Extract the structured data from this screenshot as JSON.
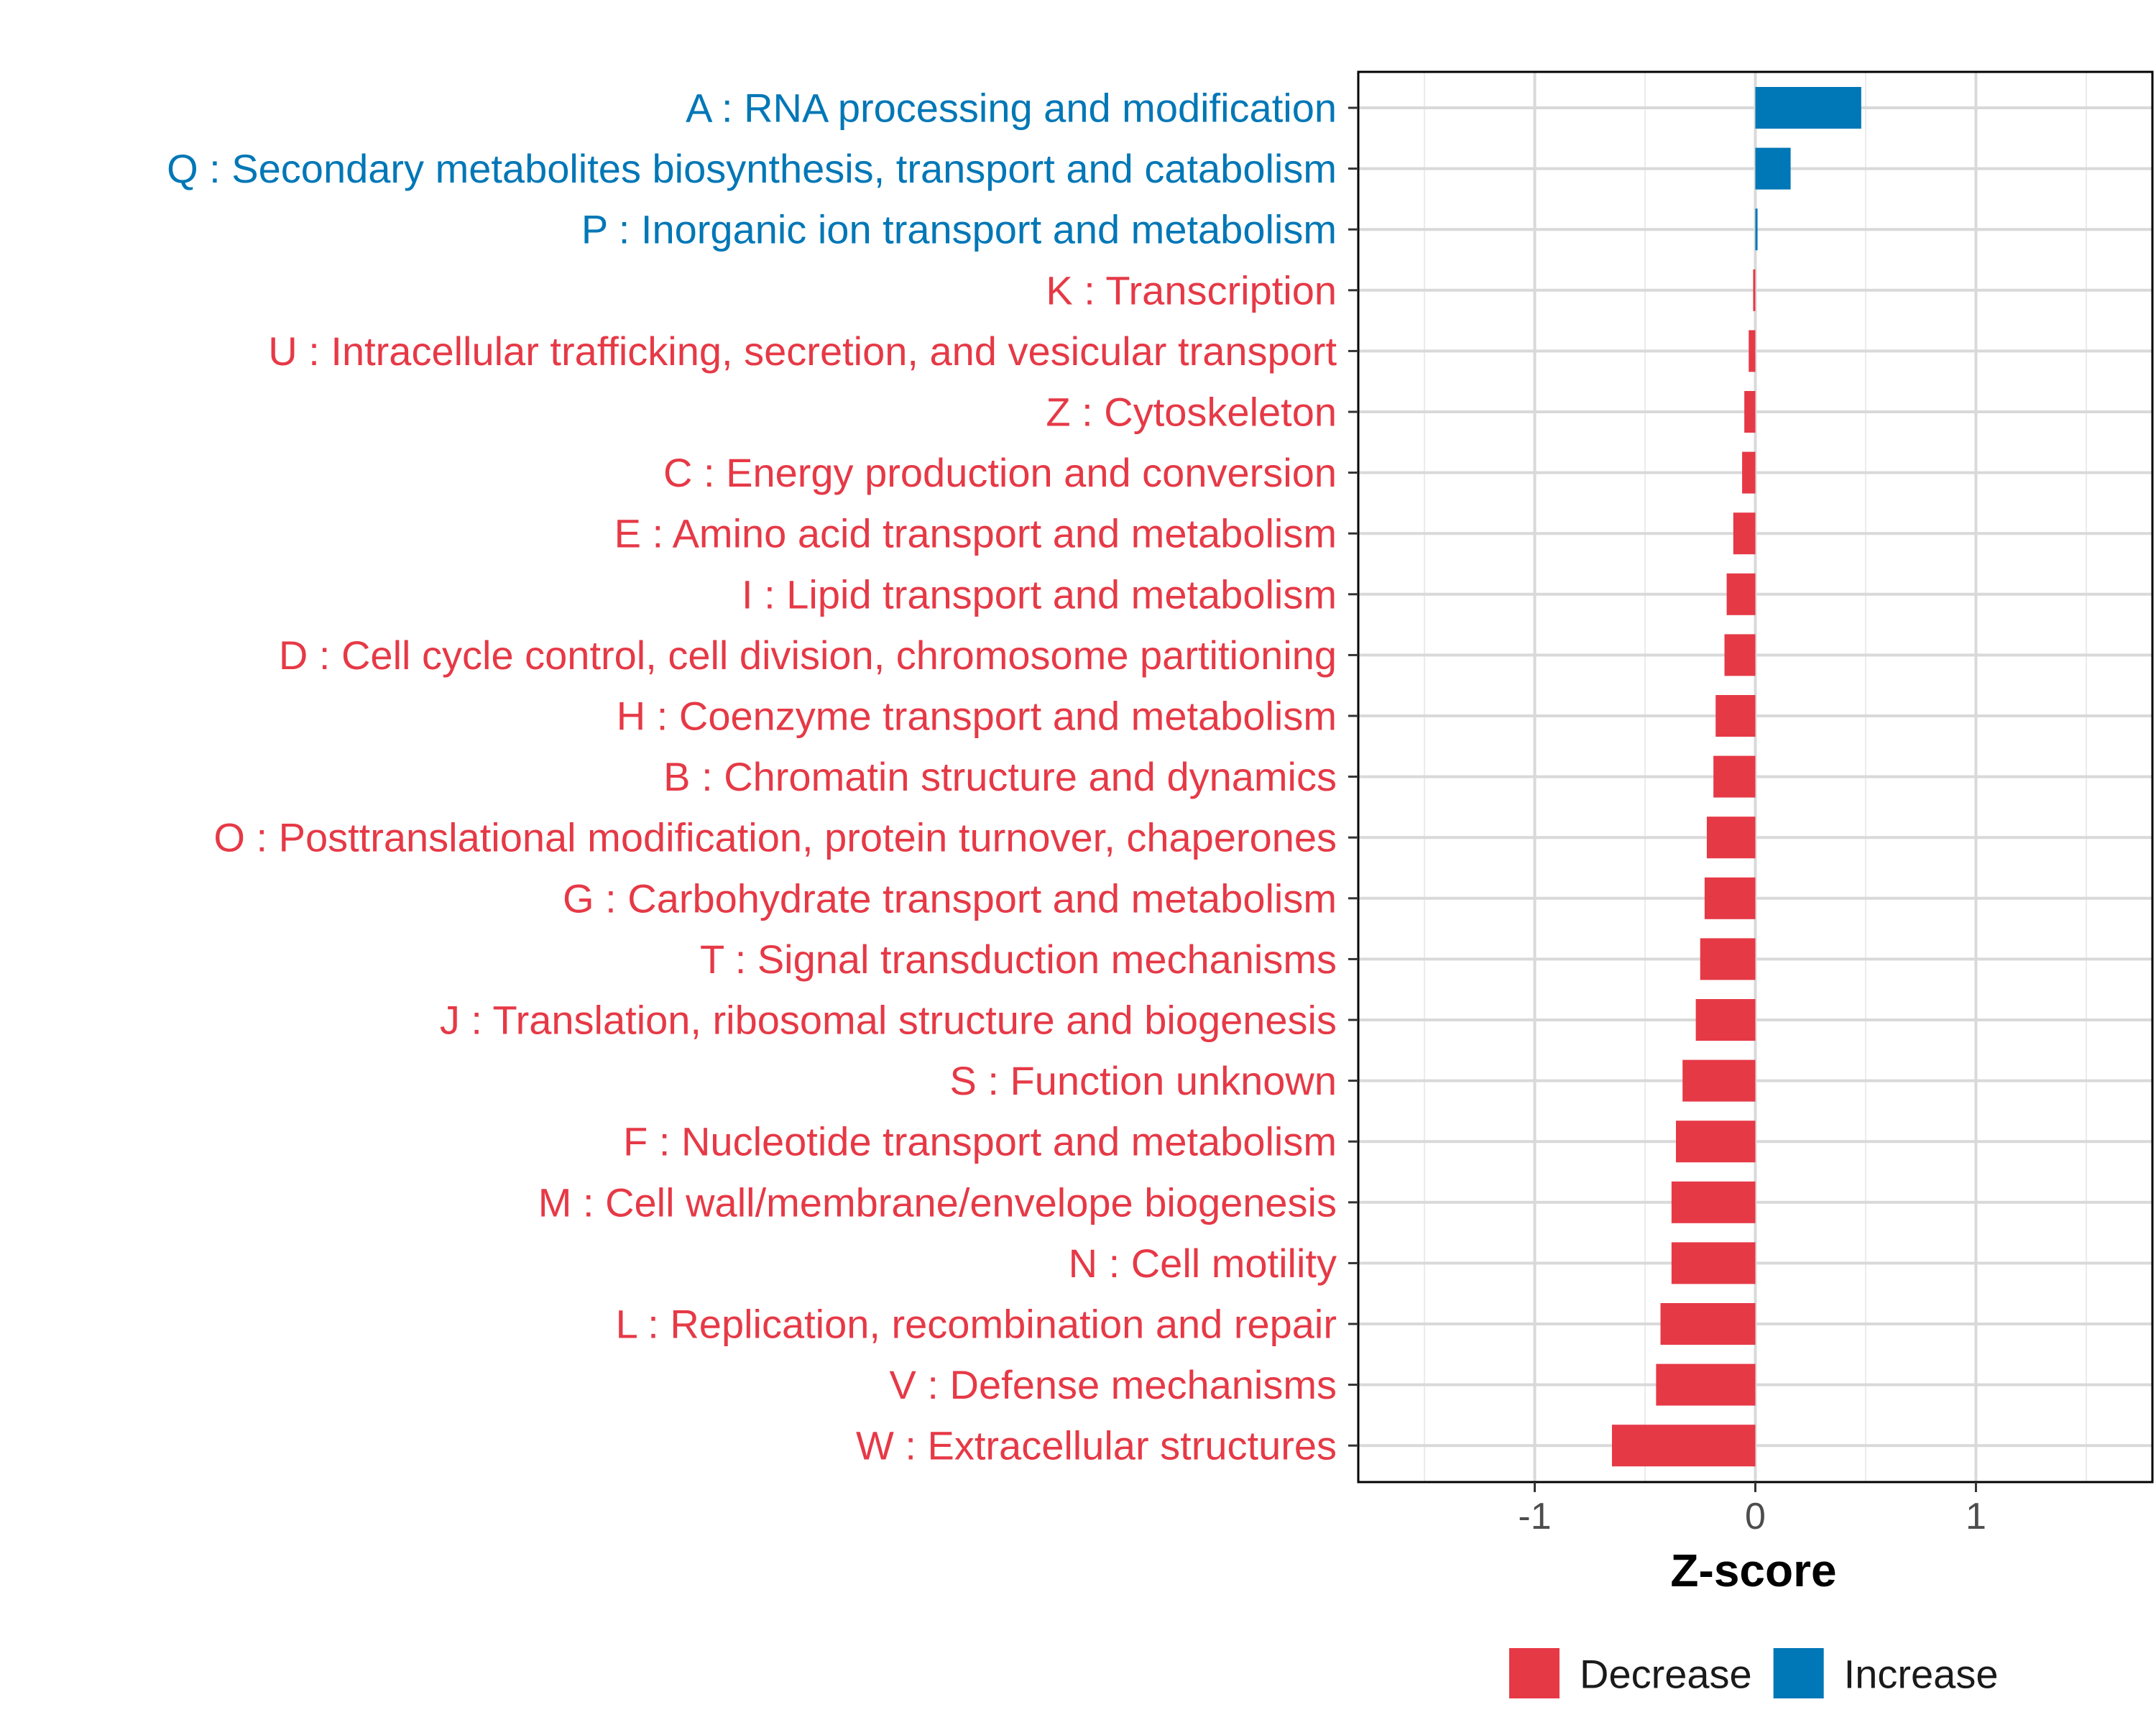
{
  "chart_data": {
    "type": "bar",
    "orientation": "horizontal",
    "title": "",
    "xlabel": "Z-score",
    "ylabel": "",
    "xlim": [
      -1.8,
      1.8
    ],
    "xticks": [
      -1,
      0,
      1
    ],
    "xtick_labels": [
      "-1",
      "0",
      "1"
    ],
    "grid": true,
    "legend_position": "bottom",
    "colors": {
      "Decrease": "#e63946",
      "Increase": "#0077b6"
    },
    "legend": [
      {
        "label": "Decrease",
        "color": "#e63946"
      },
      {
        "label": "Increase",
        "color": "#0077b6"
      }
    ],
    "categories": [
      "A : RNA processing and modification",
      "Q : Secondary metabolites biosynthesis, transport and catabolism",
      "P : Inorganic ion transport and metabolism",
      "K : Transcription",
      "U : Intracellular trafficking, secretion, and vesicular transport",
      "Z : Cytoskeleton",
      "C : Energy production and conversion",
      "E : Amino acid transport and metabolism",
      "I : Lipid transport and metabolism",
      "D : Cell cycle control, cell division, chromosome partitioning",
      "H : Coenzyme transport and metabolism",
      "B : Chromatin structure and dynamics",
      "O : Posttranslational modification, protein turnover, chaperones",
      "G : Carbohydrate transport and metabolism",
      "T : Signal transduction mechanisms",
      "J : Translation, ribosomal structure and biogenesis",
      "S : Function unknown",
      "F : Nucleotide transport and metabolism",
      "M : Cell wall/membrane/envelope biogenesis",
      "N : Cell motility",
      "L : Replication, recombination and repair",
      "V : Defense mechanisms",
      "W : Extracellular structures"
    ],
    "values": [
      0.48,
      0.16,
      0.01,
      -0.01,
      -0.03,
      -0.05,
      -0.06,
      -0.1,
      -0.13,
      -0.14,
      -0.18,
      -0.19,
      -0.22,
      -0.23,
      -0.25,
      -0.27,
      -0.33,
      -0.36,
      -0.38,
      -0.38,
      -0.43,
      -0.45,
      -0.65
    ],
    "groups": [
      "Increase",
      "Increase",
      "Increase",
      "Decrease",
      "Decrease",
      "Decrease",
      "Decrease",
      "Decrease",
      "Decrease",
      "Decrease",
      "Decrease",
      "Decrease",
      "Decrease",
      "Decrease",
      "Decrease",
      "Decrease",
      "Decrease",
      "Decrease",
      "Decrease",
      "Decrease",
      "Decrease",
      "Decrease",
      "Decrease"
    ]
  }
}
